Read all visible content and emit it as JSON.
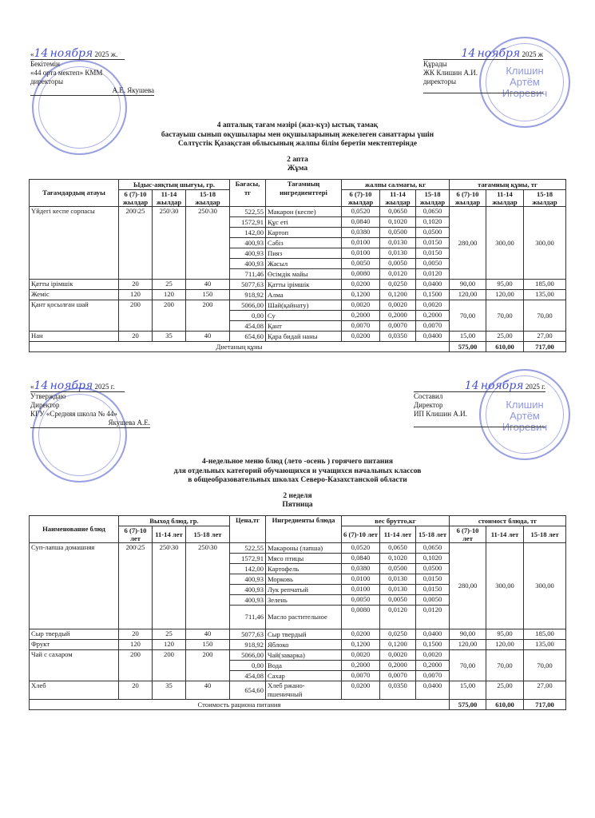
{
  "kz": {
    "approve": {
      "date_prefix": "«",
      "date_day": "14",
      "date_month": "ноября",
      "date_suffix": "2025 ж.",
      "l1": "Бекітемін",
      "l2": "«44 орта мектеп» КММ",
      "l3": "директоры",
      "sign": "А.Е. Якушева"
    },
    "compose": {
      "date_day": "14",
      "date_month": "ноября",
      "date_suffix": "2025 ж",
      "l1": "Құрады",
      "l2": "ЖК Клишин А.И.",
      "l3": "директоры"
    },
    "stamp_right": [
      "Клишин",
      "Артём",
      "Игоревич"
    ],
    "title": [
      "4 апталық тағам мәзірі (жаз-күз) ыстық тамақ",
      "бастауыш сынып оқушылары мен оқушыларының жекелеген санаттары үшін",
      "Солтүстік Қазақстан облысының жалпы білім беретін мектептерінде"
    ],
    "week": "2 апта",
    "day": "Жұма",
    "headers": {
      "dish": "Тағамдардың атауы",
      "yield": "Ыдыс-аяқтың шығуы, гр.",
      "price": "Бағасы, тг",
      "ingr": "Тағамның ингредиенттері",
      "weight": "жалпы салмағы, кг",
      "cost": "тағамның құны, тг",
      "ages": [
        "6 (7)-10 жылдар",
        "11-14 жылдар",
        "15-18 жылдар"
      ]
    },
    "dishes": [
      {
        "name": "Үйдегі кеспе сорпасы",
        "yields": [
          "200\\25",
          "250\\30",
          "250\\30"
        ],
        "costs": [
          "280,00",
          "300,00",
          "300,00"
        ],
        "ingredients": [
          {
            "price": "522,55",
            "name": "Макарон (кеспе)",
            "w": [
              "0,0520",
              "0,0650",
              "0,0650"
            ]
          },
          {
            "price": "1572,91",
            "name": "Құс еті",
            "w": [
              "0,0840",
              "0,1020",
              "0,1020"
            ]
          },
          {
            "price": "142,00",
            "name": "Картоп",
            "w": [
              "0,0380",
              "0,0500",
              "0,0500"
            ]
          },
          {
            "price": "400,93",
            "name": "Сәбіз",
            "w": [
              "0,0100",
              "0,0130",
              "0,0150"
            ]
          },
          {
            "price": "400,93",
            "name": "Пияз",
            "w": [
              "0,0100",
              "0,0130",
              "0,0150"
            ]
          },
          {
            "price": "400,93",
            "name": "Жасыл",
            "w": [
              "0,0050",
              "0,0050",
              "0,0050"
            ]
          },
          {
            "price": "711,46",
            "name": "Өсімдік майы",
            "w": [
              "0,0080",
              "0,0120",
              "0,0120"
            ]
          }
        ]
      },
      {
        "name": "Қатты ірімшік",
        "yields": [
          "20",
          "25",
          "40"
        ],
        "costs": [
          "90,00",
          "95,00",
          "185,00"
        ],
        "ingredients": [
          {
            "price": "5077,63",
            "name": "Қатты ірімшік",
            "w": [
              "0,0200",
              "0,0250",
              "0,0400"
            ]
          }
        ]
      },
      {
        "name": "Жеміс",
        "yields": [
          "120",
          "120",
          "150"
        ],
        "costs": [
          "120,00",
          "120,00",
          "135,00"
        ],
        "ingredients": [
          {
            "price": "918,92",
            "name": "Алма",
            "w": [
              "0,1200",
              "0,1200",
              "0,1500"
            ]
          }
        ]
      },
      {
        "name": "Қант қосылған шай",
        "yields": [
          "200",
          "200",
          "200"
        ],
        "costs": [
          "70,00",
          "70,00",
          "70,00"
        ],
        "ingredients": [
          {
            "price": "5066,00",
            "name": "Шай(қайнату)",
            "w": [
              "0,0020",
              "0,0020",
              "0,0020"
            ]
          },
          {
            "price": "0,00",
            "name": "Су",
            "w": [
              "0,2000",
              "0,2000",
              "0,2000"
            ]
          },
          {
            "price": "454,08",
            "name": "Қант",
            "w": [
              "0,0070",
              "0,0070",
              "0,0070"
            ]
          }
        ]
      },
      {
        "name": "Нан",
        "yields": [
          "20",
          "35",
          "40"
        ],
        "costs": [
          "15,00",
          "25,00",
          "27,00"
        ],
        "ingredients": [
          {
            "price": "654,60",
            "name": "Қара бидай наны",
            "w": [
              "0,0200",
              "0,0350",
              "0,0400"
            ]
          }
        ]
      }
    ],
    "total_label": "Диетаның құны",
    "totals": [
      "575,00",
      "610,00",
      "717,00"
    ]
  },
  "ru": {
    "approve": {
      "date_prefix": "«",
      "date_day": "14",
      "date_month": "ноября",
      "date_suffix": "2025 г.",
      "l1": "Утверждаю",
      "l2": "Директор",
      "l3": "КГУ «Средняя школа № 44»",
      "sign": "Якушева А.Е."
    },
    "compose": {
      "date_day": "14",
      "date_month": "ноября",
      "date_suffix": "2025 г.",
      "l1": "Составил",
      "l2": "Директор",
      "l3": "ИП Клишин А.И."
    },
    "stamp_right": [
      "Клишин",
      "Артём",
      "Игоревич"
    ],
    "title": [
      "4-недельное меню блюд (лето -осень ) горячего питания",
      "для отдельных категорий обучающихся и учащихся начальных классов",
      "в общеобразовательных школах Северо-Казахстанской области"
    ],
    "week": "2 неделя",
    "day": "Пятница",
    "headers": {
      "dish": "Наименование блюд",
      "yield": "Выход блюд, гр.",
      "price": "Цена,тг",
      "ingr": "Ингредиенты блюда",
      "weight": "вес брутто,кг",
      "cost": "стоимост блюда, тг",
      "ages": [
        "6 (7)-10 лет",
        "11-14 лет",
        "15-18 лет"
      ]
    },
    "dishes": [
      {
        "name": "Суп-лапша домашняя",
        "yields": [
          "200\\25",
          "250\\30",
          "250\\30"
        ],
        "costs": [
          "280,00",
          "300,00",
          "300,00"
        ],
        "ingredients": [
          {
            "price": "522,55",
            "name": "Макароны (лапша)",
            "w": [
              "0,0520",
              "0,0650",
              "0,0650"
            ]
          },
          {
            "price": "1572,91",
            "name": "Мясо птицы",
            "w": [
              "0,0840",
              "0,1020",
              "0,1020"
            ]
          },
          {
            "price": "142,00",
            "name": "Картофель",
            "w": [
              "0,0380",
              "0,0500",
              "0,0500"
            ]
          },
          {
            "price": "400,93",
            "name": "Морковь",
            "w": [
              "0,0100",
              "0,0130",
              "0,0150"
            ]
          },
          {
            "price": "400,93",
            "name": "Лук репчатый",
            "w": [
              "0,0100",
              "0,0130",
              "0,0150"
            ]
          },
          {
            "price": "400,93",
            "name": "Зелень",
            "w": [
              "0,0050",
              "0,0050",
              "0,0050"
            ]
          },
          {
            "price": "711,46",
            "name": "Масло растительное",
            "w": [
              "0,0080",
              "0,0120",
              "0,0120"
            ]
          }
        ]
      },
      {
        "name": "Сыр твердый",
        "yields": [
          "20",
          "25",
          "40"
        ],
        "costs": [
          "90,00",
          "95,00",
          "185,00"
        ],
        "ingredients": [
          {
            "price": "5077,63",
            "name": "Сыр твердый",
            "w": [
              "0,0200",
              "0,0250",
              "0,0400"
            ]
          }
        ]
      },
      {
        "name": "Фрукт",
        "yields": [
          "120",
          "120",
          "150"
        ],
        "costs": [
          "120,00",
          "120,00",
          "135,00"
        ],
        "ingredients": [
          {
            "price": "918,92",
            "name": "Яблоко",
            "w": [
              "0,1200",
              "0,1200",
              "0,1500"
            ]
          }
        ]
      },
      {
        "name": "Чай с сахаром",
        "yields": [
          "200",
          "200",
          "200"
        ],
        "costs": [
          "70,00",
          "70,00",
          "70,00"
        ],
        "ingredients": [
          {
            "price": "5066,00",
            "name": "Чай(заварка)",
            "w": [
              "0,0020",
              "0,0020",
              "0,0020"
            ]
          },
          {
            "price": "0,00",
            "name": "Вода",
            "w": [
              "0,2000",
              "0,2000",
              "0,2000"
            ]
          },
          {
            "price": "454,08",
            "name": "Сахар",
            "w": [
              "0,0070",
              "0,0070",
              "0,0070"
            ]
          }
        ]
      },
      {
        "name": "Хлеб",
        "yields": [
          "20",
          "35",
          "40"
        ],
        "costs": [
          "15,00",
          "25,00",
          "27,00"
        ],
        "ingredients": [
          {
            "price": "654,60",
            "name": "Хлеб ржано-пшеничный",
            "w": [
              "0,0200",
              "0,0350",
              "0,0400"
            ]
          }
        ]
      }
    ],
    "total_label": "Стоимость рациона питания",
    "totals": [
      "575,00",
      "610,00",
      "717,00"
    ]
  }
}
